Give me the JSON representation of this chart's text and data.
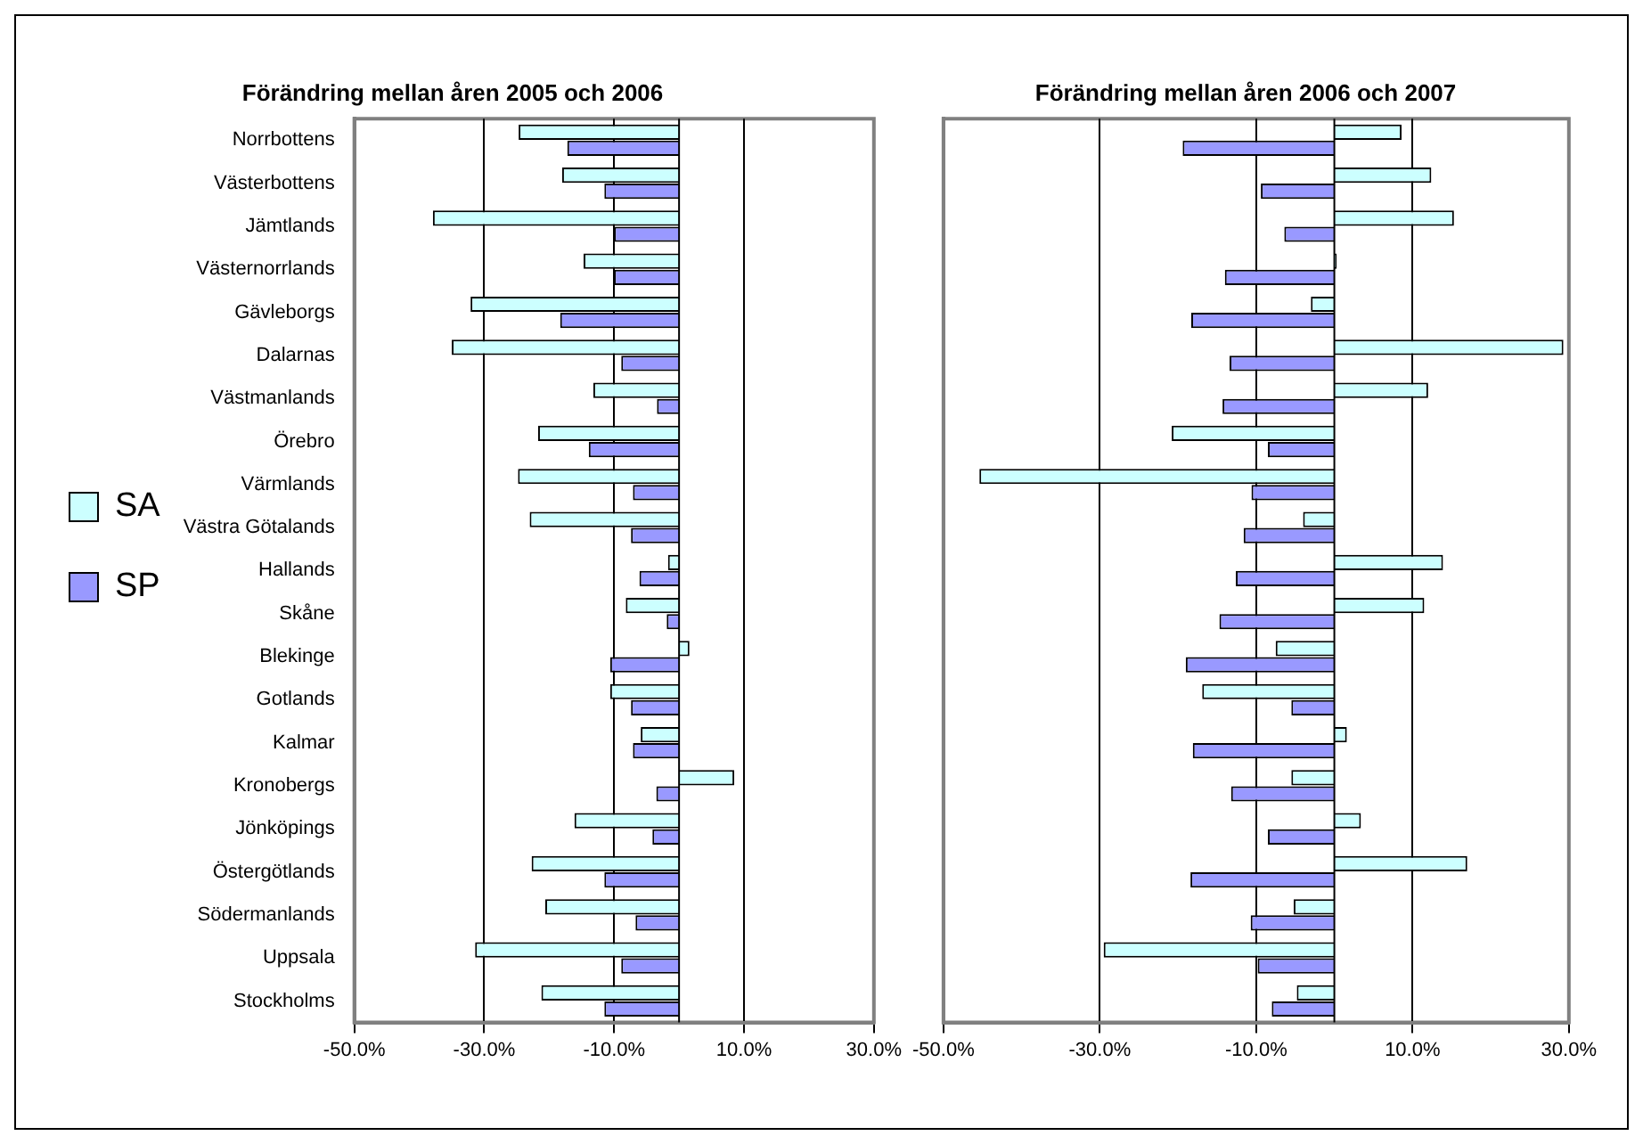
{
  "chart_data": [
    {
      "type": "bar",
      "orientation": "horizontal",
      "title": "Förändring mellan åren 2005 och 2006",
      "categories": [
        "Norrbottens",
        "Västerbottens",
        "Jämtlands",
        "Västernorrlands",
        "Gävleborgs",
        "Dalarnas",
        "Västmanlands",
        "Örebro",
        "Värmlands",
        "Västra Götalands",
        "Hallands",
        "Skåne",
        "Blekinge",
        "Gotlands",
        "Kalmar",
        "Kronobergs",
        "Jönköpings",
        "Östergötlands",
        "Södermanlands",
        "Uppsala",
        "Stockholms"
      ],
      "series": [
        {
          "name": "SA",
          "color": "#ccffff",
          "values": [
            -24.7,
            -18.0,
            -37.9,
            -14.7,
            -32.1,
            -35.0,
            -13.2,
            -21.7,
            -24.8,
            -23.0,
            -1.7,
            -8.2,
            1.6,
            -10.6,
            -5.9,
            8.5,
            -16.1,
            -22.7,
            -20.6,
            -31.4,
            -21.2
          ]
        },
        {
          "name": "SP",
          "color": "#9999ff",
          "values": [
            -17.2,
            -11.5,
            -10.0,
            -10.0,
            -18.3,
            -8.9,
            -3.4,
            -13.9,
            -7.1,
            -7.4,
            -6.1,
            -1.9,
            -10.6,
            -7.4,
            -7.1,
            -3.5,
            -4.1,
            -11.5,
            -6.7,
            -8.9,
            -11.5
          ]
        }
      ],
      "xlim": [
        -50,
        30
      ],
      "xticks": [
        {
          "value": -50,
          "label": "-50.0%"
        },
        {
          "value": -30,
          "label": "-30.0%"
        },
        {
          "value": -10,
          "label": "-10.0%"
        },
        {
          "value": 10,
          "label": "10.0%"
        },
        {
          "value": 30,
          "label": "30.0%"
        }
      ],
      "grid": "x",
      "legend": "left"
    },
    {
      "type": "bar",
      "orientation": "horizontal",
      "title": "Förändring mellan åren 2006 och 2007",
      "categories": [
        null,
        null,
        null,
        null,
        null,
        null,
        null,
        null,
        null,
        null,
        null,
        null,
        null,
        null,
        null,
        null,
        null,
        null,
        null,
        null,
        null
      ],
      "series": [
        {
          "color": "#ccffff",
          "values": [
            8.6,
            12.4,
            15.3,
            0.3,
            -3.0,
            29.3,
            12.0,
            -20.8,
            -45.4,
            -4.0,
            13.9,
            11.5,
            -7.5,
            -16.9,
            1.6,
            -5.5,
            3.4,
            17.0,
            -5.2,
            -29.5,
            -4.8
          ]
        },
        {
          "color": "#9999ff",
          "values": [
            -19.4,
            -9.4,
            -6.4,
            -14.0,
            -18.3,
            -13.4,
            -14.3,
            -8.5,
            -10.6,
            -11.6,
            -12.6,
            -14.7,
            -19.0,
            -5.5,
            -18.1,
            -13.2,
            -8.5,
            -18.4,
            -10.7,
            -9.8,
            -8.0
          ]
        }
      ],
      "xlim": [
        -50,
        30
      ],
      "xticks": [
        {
          "value": -50,
          "label": "-50.0%"
        },
        {
          "value": -30,
          "label": "-30.0%"
        },
        {
          "value": -10,
          "label": "-10.0%"
        },
        {
          "value": 10,
          "label": "10.0%"
        },
        {
          "value": 30,
          "label": "30.0%"
        }
      ],
      "grid": "x",
      "legend": false,
      "tick_labels": "x"
    }
  ]
}
